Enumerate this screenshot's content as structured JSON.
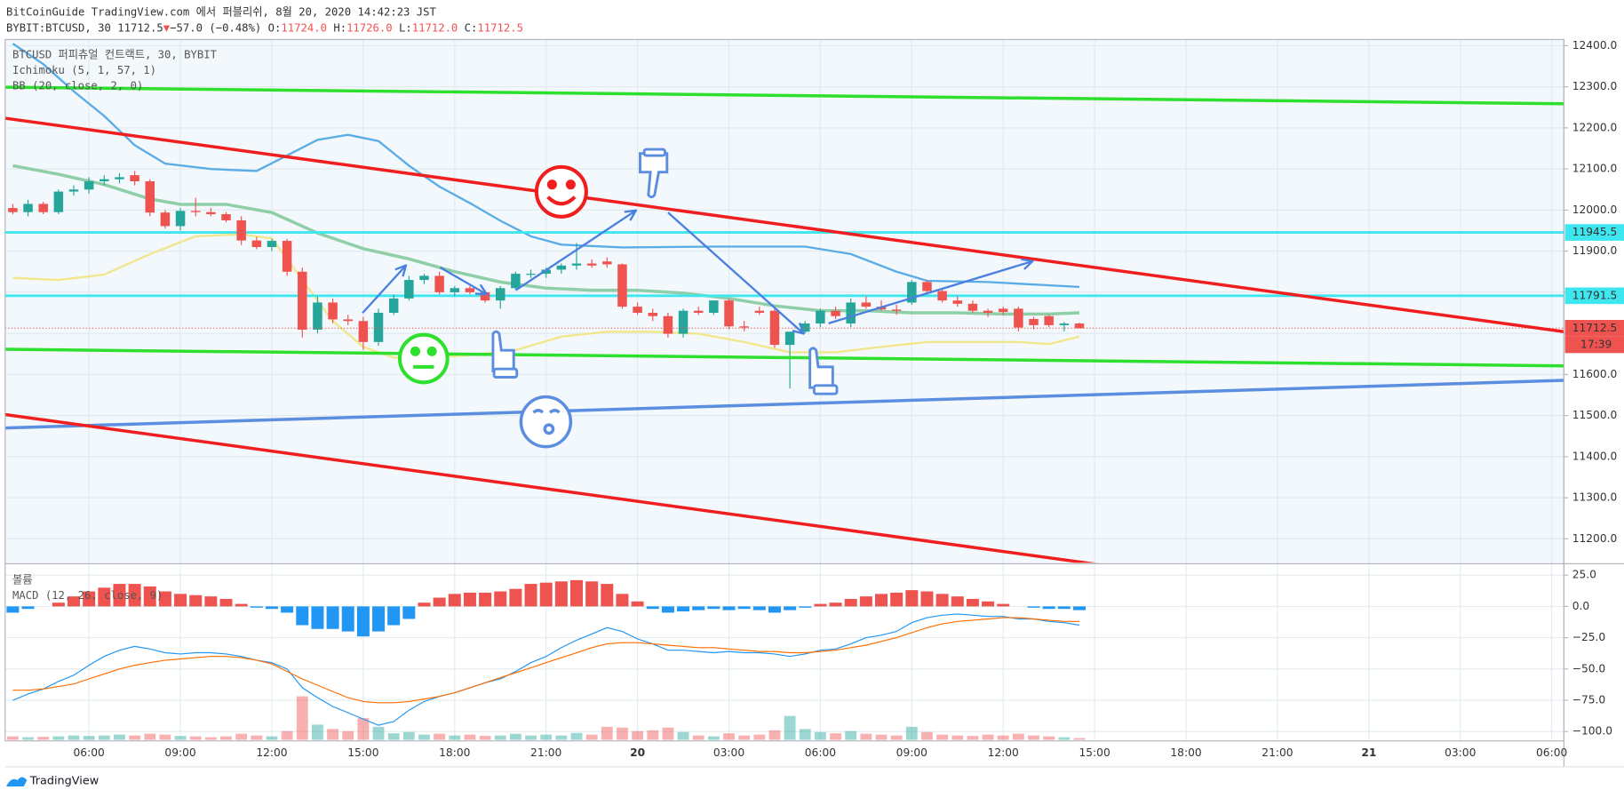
{
  "header": {
    "publisher": "BitCoinGuide TradingView.com 에서 퍼블리쉬, 8월 20, 2020 14:42:23 JST",
    "symbol": "BYBIT:BTCUSD, 30",
    "last": "11712.5",
    "arrow": "▼",
    "change": "−57.0 (−0.48%)",
    "ohlc": [
      {
        "key": "O:",
        "value": "11724.0"
      },
      {
        "key": "H:",
        "value": "11726.0"
      },
      {
        "key": "L:",
        "value": "11712.0"
      },
      {
        "key": "C:",
        "value": "11712.5"
      }
    ]
  },
  "chart_data": [
    {
      "type": "candlestick",
      "title": "BTCUSD 퍼피츄얼 컨트랙트, 30, BYBIT",
      "indicators": [
        "Ichimoku (5, 1, 57, 1)",
        "BB (20, close, 2, 0)"
      ],
      "up_color": "#26a69a",
      "down_color": "#ef5350",
      "open": [
        12005,
        11995,
        12015,
        11995,
        12045,
        12050,
        12070,
        12075,
        12085,
        12070,
        11994,
        11961,
        11998,
        11995,
        11990,
        11975,
        11926,
        11910,
        11925,
        11850,
        11709,
        11775,
        11734,
        11730,
        11679,
        11750,
        11785,
        11830,
        11840,
        11800,
        11810,
        11800,
        11780,
        11810,
        11845,
        11845,
        11855,
        11865,
        11870,
        11875,
        11868,
        11765,
        11750,
        11742,
        11699,
        11755,
        11750,
        11780,
        11717,
        11755,
        11755,
        11672,
        11704,
        11724,
        11755,
        11724,
        11775,
        11765,
        11758,
        11775,
        11825,
        11803,
        11780,
        11772,
        11755,
        11760,
        11760,
        11735,
        11742,
        11720,
        11724
      ],
      "high": [
        12015,
        12025,
        12020,
        12050,
        12060,
        12080,
        12085,
        12090,
        12095,
        12075,
        12000,
        12005,
        12030,
        12005,
        11995,
        11985,
        11935,
        11930,
        11930,
        11860,
        11790,
        11785,
        11745,
        11740,
        11760,
        11795,
        11840,
        11845,
        11850,
        11815,
        11815,
        11805,
        11815,
        11850,
        11855,
        11860,
        11870,
        11920,
        11880,
        11885,
        11870,
        11775,
        11760,
        11750,
        11760,
        11765,
        11780,
        11785,
        11730,
        11765,
        11760,
        11700,
        11730,
        11760,
        11765,
        11785,
        11790,
        11780,
        11770,
        11830,
        11830,
        11810,
        11790,
        11780,
        11760,
        11765,
        11765,
        11740,
        11745,
        11728,
        11726
      ],
      "low": [
        11990,
        11985,
        11990,
        11990,
        12035,
        12040,
        12060,
        12065,
        12060,
        11985,
        11955,
        11950,
        11985,
        11985,
        11970,
        11915,
        11905,
        11900,
        11840,
        11690,
        11700,
        11725,
        11720,
        11660,
        11670,
        11745,
        11780,
        11820,
        11795,
        11790,
        11795,
        11775,
        11760,
        11805,
        11835,
        11835,
        11845,
        11855,
        11860,
        11860,
        11760,
        11745,
        11730,
        11690,
        11690,
        11745,
        11745,
        11710,
        11705,
        11745,
        11665,
        11566,
        11700,
        11715,
        11735,
        11715,
        11760,
        11755,
        11745,
        11770,
        11795,
        11775,
        11765,
        11750,
        11740,
        11745,
        11705,
        11710,
        11715,
        11705,
        11712
      ],
      "close": [
        11995,
        12015,
        11995,
        12045,
        12050,
        12070,
        12075,
        12080,
        12070,
        11994,
        11961,
        11998,
        11995,
        11990,
        11975,
        11926,
        11910,
        11925,
        11850,
        11709,
        11775,
        11734,
        11730,
        11679,
        11750,
        11785,
        11830,
        11840,
        11800,
        11810,
        11800,
        11780,
        11810,
        11845,
        11845,
        11855,
        11865,
        11870,
        11865,
        11868,
        11765,
        11750,
        11742,
        11699,
        11755,
        11750,
        11780,
        11717,
        11714,
        11750,
        11672,
        11704,
        11724,
        11755,
        11742,
        11775,
        11765,
        11758,
        11755,
        11825,
        11803,
        11780,
        11772,
        11755,
        11750,
        11752,
        11714,
        11720,
        11720,
        11724,
        11712.5
      ],
      "lines": [
        {
          "color": "#5aace6",
          "width": 2,
          "x": [
            0,
            2,
            4,
            6,
            8,
            10,
            13,
            16,
            18,
            20,
            22,
            24,
            26,
            28,
            30,
            32,
            34,
            36,
            40,
            46,
            52,
            55,
            58,
            60,
            64,
            70
          ],
          "values": [
            12405,
            12355,
            12289,
            12229,
            12158,
            12113,
            12100,
            12095,
            12133,
            12171,
            12183,
            12168,
            12108,
            12057,
            12017,
            11974,
            11936,
            11916,
            11909,
            11911,
            11911,
            11893,
            11850,
            11828,
            11825,
            11813
          ]
        },
        {
          "color": "#8fcfa8",
          "width": 3,
          "x": [
            0,
            3,
            6,
            9,
            11,
            14,
            17,
            20,
            23,
            26,
            29,
            32,
            35,
            38,
            41,
            44,
            47,
            50,
            53,
            56,
            59,
            62,
            65,
            68,
            70
          ],
          "values": [
            12108,
            12087,
            12062,
            12027,
            12014,
            12014,
            11994,
            11944,
            11906,
            11881,
            11850,
            11825,
            11810,
            11805,
            11805,
            11798,
            11785,
            11767,
            11755,
            11755,
            11750,
            11750,
            11747,
            11747,
            11750
          ]
        },
        {
          "color": "#f2e68a",
          "width": 2,
          "x": [
            0,
            3,
            6,
            9,
            12,
            15,
            17,
            19,
            21,
            23,
            25,
            27,
            30,
            33,
            36,
            39,
            42,
            45,
            48,
            51,
            54,
            57,
            60,
            63,
            66,
            68,
            70
          ],
          "values": [
            11835,
            11830,
            11843,
            11893,
            11936,
            11941,
            11931,
            11830,
            11730,
            11667,
            11641,
            11641,
            11647,
            11659,
            11692,
            11704,
            11704,
            11699,
            11679,
            11654,
            11654,
            11667,
            11679,
            11679,
            11679,
            11674,
            11692
          ]
        }
      ],
      "levels": [
        {
          "value": 11945.5,
          "color": "#3ee6f0"
        },
        {
          "value": 11791.5,
          "color": "#3ee6f0"
        }
      ],
      "last_price": {
        "value": 11712.5,
        "color": "#ef5350"
      },
      "countdown": "17:39",
      "xlim": [
        -0.5,
        101.8
      ],
      "xticks": [
        {
          "value": 5,
          "label": "06:00"
        },
        {
          "value": 11,
          "label": "09:00"
        },
        {
          "value": 17,
          "label": "12:00"
        },
        {
          "value": 23,
          "label": "15:00"
        },
        {
          "value": 29,
          "label": "18:00"
        },
        {
          "value": 35,
          "label": "21:00"
        },
        {
          "value": 41,
          "label": "20"
        },
        {
          "value": 47,
          "label": "03:00"
        },
        {
          "value": 53,
          "label": "06:00"
        },
        {
          "value": 59,
          "label": "09:00"
        },
        {
          "value": 65,
          "label": "12:00"
        },
        {
          "value": 71,
          "label": "15:00"
        },
        {
          "value": 77,
          "label": "18:00"
        },
        {
          "value": 83,
          "label": "21:00"
        },
        {
          "value": 89,
          "label": "21"
        },
        {
          "value": 95,
          "label": "03:00"
        },
        {
          "value": 101,
          "label": "06:00"
        }
      ],
      "ylim": [
        11142,
        12415
      ],
      "yticks": [
        {
          "value": 11200,
          "label": "11200.0"
        },
        {
          "value": 11300,
          "label": "11300.0"
        },
        {
          "value": 11400,
          "label": "11400.0"
        },
        {
          "value": 11500,
          "label": "11500.0"
        },
        {
          "value": 11600,
          "label": "11600.0"
        },
        {
          "value": 11700,
          "label": "11700.0"
        },
        {
          "value": 11800,
          "label": "11800.0"
        },
        {
          "value": 11900,
          "label": "11900.0"
        },
        {
          "value": 12000,
          "label": "12000.0"
        },
        {
          "value": 12100,
          "label": "12100.0"
        },
        {
          "value": 12200,
          "label": "12200.0"
        },
        {
          "value": 12300,
          "label": "12300.0"
        },
        {
          "value": 12400,
          "label": "12400.0"
        }
      ],
      "grid": true
    },
    {
      "type": "macd",
      "title": "볼륨",
      "subtitle": "MACD (12, 26, close, 9)",
      "histogram": {
        "up_color": "#ef5350",
        "down_color": "#2196f3",
        "values": [
          -5,
          -2,
          0,
          3,
          8,
          12,
          15,
          18,
          18,
          16,
          12,
          10,
          9,
          8,
          6,
          2,
          -1,
          -2,
          -5,
          -15,
          -18,
          -18,
          -20,
          -24,
          -20,
          -15,
          -10,
          3,
          7,
          10,
          11,
          11,
          12,
          14,
          18,
          19,
          20,
          21,
          20,
          18,
          10,
          4,
          -2,
          -5,
          -4,
          -3,
          -2,
          -3,
          -2,
          -3,
          -5,
          -3,
          -1,
          2,
          3,
          6,
          8,
          10,
          11,
          13,
          12,
          10,
          8,
          6,
          4,
          2,
          0,
          -1,
          -2,
          -2,
          -3
        ]
      },
      "volume": [
        8,
        6,
        7,
        8,
        10,
        9,
        10,
        12,
        10,
        14,
        12,
        9,
        8,
        6,
        8,
        14,
        10,
        8,
        20,
        100,
        35,
        25,
        20,
        50,
        30,
        15,
        18,
        12,
        14,
        10,
        12,
        9,
        10,
        14,
        10,
        12,
        10,
        16,
        12,
        30,
        28,
        20,
        22,
        28,
        18,
        10,
        8,
        15,
        10,
        12,
        22,
        55,
        25,
        18,
        15,
        20,
        14,
        12,
        10,
        30,
        18,
        12,
        10,
        9,
        12,
        10,
        14,
        10,
        8,
        6,
        4
      ],
      "lines": [
        {
          "color": "#2196f3",
          "values": [
            -75,
            -70,
            -66,
            -60,
            -55,
            -47,
            -40,
            -35,
            -32,
            -34,
            -37,
            -38,
            -37,
            -37,
            -38,
            -40,
            -43,
            -45,
            -50,
            -65,
            -73,
            -80,
            -85,
            -90,
            -95,
            -92,
            -83,
            -76,
            -72,
            -69,
            -65,
            -61,
            -58,
            -52,
            -45,
            -40,
            -33,
            -27,
            -22,
            -17,
            -20,
            -26,
            -30,
            -35,
            -35,
            -36,
            -37,
            -36,
            -37,
            -37,
            -38,
            -40,
            -38,
            -35,
            -34,
            -30,
            -25,
            -23,
            -20,
            -13,
            -9,
            -7,
            -6,
            -7,
            -8,
            -8,
            -10,
            -10,
            -12,
            -13,
            -15
          ]
        },
        {
          "color": "#ff6d00",
          "values": [
            -67,
            -67,
            -66,
            -64,
            -62,
            -58,
            -54,
            -50,
            -47,
            -45,
            -43,
            -42,
            -41,
            -40,
            -40,
            -41,
            -43,
            -46,
            -52,
            -58,
            -63,
            -68,
            -73,
            -76,
            -77,
            -77,
            -76,
            -74,
            -72,
            -69,
            -65,
            -61,
            -57,
            -53,
            -49,
            -45,
            -41,
            -37,
            -33,
            -30,
            -29,
            -29,
            -30,
            -31,
            -32,
            -33,
            -33,
            -34,
            -35,
            -36,
            -36,
            -37,
            -37,
            -36,
            -35,
            -33,
            -31,
            -28,
            -25,
            -21,
            -17,
            -14,
            -12,
            -11,
            -10,
            -9,
            -9,
            -10,
            -11,
            -12,
            -12
          ]
        }
      ],
      "ylim": [
        -107.5,
        33.3
      ],
      "yticks": [
        {
          "value": 25,
          "label": "25.0"
        },
        {
          "value": 0,
          "label": "0.0"
        },
        {
          "value": -25,
          "label": "−25.0"
        },
        {
          "value": -50,
          "label": "−50.0"
        },
        {
          "value": -75,
          "label": "−75.0"
        },
        {
          "value": -100,
          "label": "−100.0"
        }
      ],
      "grid": true
    }
  ],
  "footer": "TradingView"
}
